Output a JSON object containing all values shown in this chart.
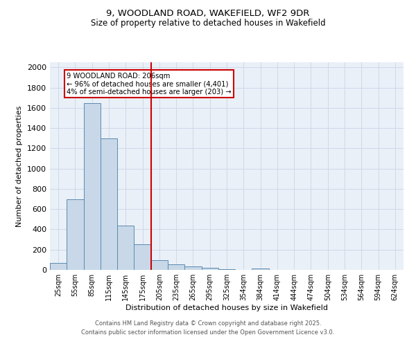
{
  "title_line1": "9, WOODLAND ROAD, WAKEFIELD, WF2 9DR",
  "title_line2": "Size of property relative to detached houses in Wakefield",
  "xlabel": "Distribution of detached houses by size in Wakefield",
  "ylabel": "Number of detached properties",
  "categories": [
    "25sqm",
    "55sqm",
    "85sqm",
    "115sqm",
    "145sqm",
    "175sqm",
    "205sqm",
    "235sqm",
    "265sqm",
    "295sqm",
    "325sqm",
    "354sqm",
    "384sqm",
    "414sqm",
    "444sqm",
    "474sqm",
    "504sqm",
    "534sqm",
    "564sqm",
    "594sqm",
    "624sqm"
  ],
  "values": [
    65,
    700,
    1650,
    1300,
    440,
    255,
    95,
    55,
    35,
    20,
    10,
    0,
    15,
    0,
    0,
    0,
    0,
    0,
    0,
    0,
    0
  ],
  "bar_color": "#c8d8e8",
  "bar_edge_color": "#5a8ab0",
  "grid_color": "#d0d8e8",
  "background_color": "#eaf0f8",
  "vline_color": "#cc0000",
  "annotation_text": "9 WOODLAND ROAD: 206sqm\n← 96% of detached houses are smaller (4,401)\n4% of semi-detached houses are larger (203) →",
  "ylim": [
    0,
    2050
  ],
  "yticks": [
    0,
    200,
    400,
    600,
    800,
    1000,
    1200,
    1400,
    1600,
    1800,
    2000
  ],
  "footer_line1": "Contains HM Land Registry data © Crown copyright and database right 2025.",
  "footer_line2": "Contains public sector information licensed under the Open Government Licence v3.0."
}
